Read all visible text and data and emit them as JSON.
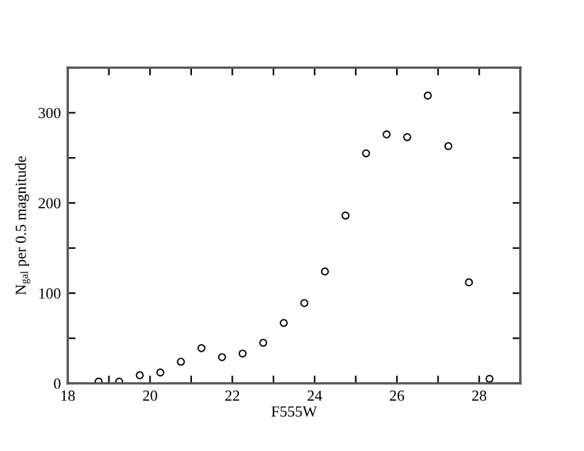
{
  "chart_data": {
    "type": "scatter",
    "xlabel": "F555W",
    "ylabel": "N$_{gal}$ per 0.5 magnitude",
    "x": [
      18.75,
      19.25,
      19.75,
      20.25,
      20.75,
      21.25,
      21.75,
      22.25,
      22.75,
      23.25,
      23.75,
      24.25,
      24.75,
      25.25,
      25.75,
      26.25,
      26.75,
      27.25,
      27.75,
      28.25
    ],
    "series": [
      {
        "color": "#000000",
        "values": [
          2,
          2,
          9,
          12,
          24,
          39,
          29,
          33,
          45,
          67,
          89,
          124,
          186,
          255,
          276,
          273,
          319,
          263,
          112,
          5
        ]
      }
    ],
    "marker": "circle",
    "grid": false,
    "legend": false,
    "xlim": [
      18,
      29
    ],
    "ylim": [
      0,
      350
    ],
    "xticks": [
      18,
      {
        "value": 19,
        "label": null
      },
      20,
      {
        "value": 21,
        "label": null
      },
      22,
      {
        "value": 23,
        "label": null
      },
      24,
      {
        "value": 25,
        "label": null
      },
      26,
      {
        "value": 27,
        "label": null
      },
      28,
      {
        "value": 29,
        "label": null
      }
    ],
    "yticks": [
      0,
      {
        "value": 50,
        "label": null
      },
      100,
      {
        "value": 150,
        "label": null
      },
      200,
      {
        "value": 250,
        "label": null
      },
      300,
      {
        "value": 350,
        "label": null
      }
    ]
  }
}
